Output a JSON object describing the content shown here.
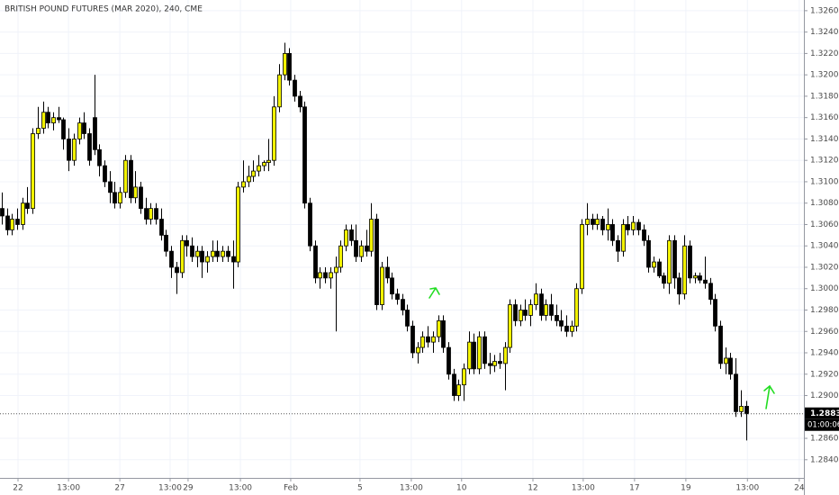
{
  "chart_data": {
    "type": "candlestick",
    "title": "BRITISH POUND FUTURES (MAR 2020), 240, CME",
    "up_color": "#f2f200",
    "down_color": "#000000",
    "grid": true,
    "ylim": [
      1.2823,
      1.327
    ],
    "yticks": [
      {
        "value": 1.326,
        "label": "1.3260"
      },
      {
        "value": 1.324,
        "label": "1.3240"
      },
      {
        "value": 1.322,
        "label": "1.3220"
      },
      {
        "value": 1.32,
        "label": "1.3200"
      },
      {
        "value": 1.318,
        "label": "1.3180"
      },
      {
        "value": 1.316,
        "label": "1.3160"
      },
      {
        "value": 1.314,
        "label": "1.3140"
      },
      {
        "value": 1.312,
        "label": "1.3120"
      },
      {
        "value": 1.31,
        "label": "1.3100"
      },
      {
        "value": 1.308,
        "label": "1.3080"
      },
      {
        "value": 1.306,
        "label": "1.3060"
      },
      {
        "value": 1.304,
        "label": "1.3040"
      },
      {
        "value": 1.302,
        "label": "1.3020"
      },
      {
        "value": 1.3,
        "label": "1.3000"
      },
      {
        "value": 1.298,
        "label": "1.2980"
      },
      {
        "value": 1.296,
        "label": "1.2960"
      },
      {
        "value": 1.294,
        "label": "1.2940"
      },
      {
        "value": 1.292,
        "label": "1.2920"
      },
      {
        "value": 1.29,
        "label": "1.2900"
      },
      {
        "value": 1.286,
        "label": "1.2860"
      },
      {
        "value": 1.284,
        "label": "1.2840"
      }
    ],
    "xlim": [
      -0.35,
      156.3
    ],
    "xticks": [
      {
        "value": 3.16,
        "label": "22"
      },
      {
        "value": 13.0,
        "label": "13:00"
      },
      {
        "value": 23.0,
        "label": "27"
      },
      {
        "value": 32.8,
        "label": "13:00"
      },
      {
        "value": 36.3,
        "label": "29"
      },
      {
        "value": 46.5,
        "label": "13:00"
      },
      {
        "value": 56.3,
        "label": "Feb"
      },
      {
        "value": 69.8,
        "label": "5"
      },
      {
        "value": 79.8,
        "label": "13:00"
      },
      {
        "value": 89.6,
        "label": "10"
      },
      {
        "value": 103.5,
        "label": "12"
      },
      {
        "value": 113.3,
        "label": "13:00"
      },
      {
        "value": 123.3,
        "label": "17"
      },
      {
        "value": 133.3,
        "label": "19"
      },
      {
        "value": 145.3,
        "label": "13:00"
      },
      {
        "value": 155.4,
        "label": "24"
      }
    ],
    "last_price": {
      "value": 1.2883,
      "label": "1.2883"
    },
    "countdown": "01:00:06",
    "ohlc": [
      [
        1.3075,
        1.309,
        1.306,
        1.3068
      ],
      [
        1.3068,
        1.3075,
        1.305,
        1.3055
      ],
      [
        1.3055,
        1.307,
        1.305,
        1.3065
      ],
      [
        1.3065,
        1.3075,
        1.3055,
        1.306
      ],
      [
        1.306,
        1.3085,
        1.3055,
        1.308
      ],
      [
        1.308,
        1.3095,
        1.307,
        1.3075
      ],
      [
        1.3075,
        1.315,
        1.307,
        1.3145
      ],
      [
        1.3145,
        1.317,
        1.314,
        1.315
      ],
      [
        1.315,
        1.3175,
        1.3145,
        1.3165
      ],
      [
        1.3165,
        1.317,
        1.315,
        1.3155
      ],
      [
        1.3155,
        1.3165,
        1.3148,
        1.316
      ],
      [
        1.316,
        1.317,
        1.3155,
        1.3158
      ],
      [
        1.3158,
        1.316,
        1.313,
        1.314
      ],
      [
        1.314,
        1.315,
        1.311,
        1.312
      ],
      [
        1.312,
        1.3145,
        1.3115,
        1.314
      ],
      [
        1.314,
        1.316,
        1.3135,
        1.3155
      ],
      [
        1.3155,
        1.3165,
        1.314,
        1.3145
      ],
      [
        1.3145,
        1.315,
        1.3115,
        1.312
      ],
      [
        1.316,
        1.32,
        1.3125,
        1.313
      ],
      [
        1.313,
        1.3135,
        1.3105,
        1.3115
      ],
      [
        1.3115,
        1.312,
        1.3095,
        1.31
      ],
      [
        1.31,
        1.311,
        1.308,
        1.309
      ],
      [
        1.309,
        1.31,
        1.3075,
        1.308
      ],
      [
        1.308,
        1.3095,
        1.3075,
        1.309
      ],
      [
        1.309,
        1.3125,
        1.3085,
        1.312
      ],
      [
        1.312,
        1.3125,
        1.308,
        1.3085
      ],
      [
        1.3085,
        1.311,
        1.308,
        1.3095
      ],
      [
        1.3095,
        1.31,
        1.307,
        1.3075
      ],
      [
        1.3075,
        1.3085,
        1.306,
        1.3065
      ],
      [
        1.3065,
        1.308,
        1.306,
        1.3075
      ],
      [
        1.3075,
        1.308,
        1.306,
        1.3065
      ],
      [
        1.3065,
        1.3075,
        1.3045,
        1.305
      ],
      [
        1.305,
        1.3055,
        1.303,
        1.3035
      ],
      [
        1.3035,
        1.304,
        1.301,
        1.302
      ],
      [
        1.302,
        1.3025,
        1.2995,
        1.3015
      ],
      [
        1.3015,
        1.305,
        1.301,
        1.3045
      ],
      [
        1.3045,
        1.305,
        1.303,
        1.304
      ],
      [
        1.304,
        1.3048,
        1.3025,
        1.303
      ],
      [
        1.303,
        1.304,
        1.302,
        1.3035
      ],
      [
        1.3035,
        1.304,
        1.301,
        1.3025
      ],
      [
        1.3025,
        1.3035,
        1.3015,
        1.303
      ],
      [
        1.303,
        1.3045,
        1.3025,
        1.3035
      ],
      [
        1.3035,
        1.3045,
        1.3025,
        1.303
      ],
      [
        1.303,
        1.304,
        1.3025,
        1.3035
      ],
      [
        1.3035,
        1.304,
        1.3025,
        1.303
      ],
      [
        1.303,
        1.3045,
        1.3,
        1.3025
      ],
      [
        1.3025,
        1.31,
        1.302,
        1.3095
      ],
      [
        1.3095,
        1.312,
        1.309,
        1.31
      ],
      [
        1.31,
        1.3115,
        1.3095,
        1.3105
      ],
      [
        1.3105,
        1.312,
        1.31,
        1.311
      ],
      [
        1.311,
        1.3125,
        1.3105,
        1.3115
      ],
      [
        1.3115,
        1.312,
        1.311,
        1.3118
      ],
      [
        1.3118,
        1.314,
        1.311,
        1.312
      ],
      [
        1.312,
        1.318,
        1.3115,
        1.317
      ],
      [
        1.317,
        1.321,
        1.3165,
        1.32
      ],
      [
        1.32,
        1.323,
        1.3195,
        1.322
      ],
      [
        1.322,
        1.3225,
        1.319,
        1.3195
      ],
      [
        1.3195,
        1.32,
        1.3175,
        1.318
      ],
      [
        1.318,
        1.3185,
        1.3165,
        1.317
      ],
      [
        1.317,
        1.3175,
        1.3075,
        1.308
      ],
      [
        1.308,
        1.3085,
        1.3035,
        1.304
      ],
      [
        1.304,
        1.3045,
        1.3005,
        1.301
      ],
      [
        1.301,
        1.302,
        1.3,
        1.3015
      ],
      [
        1.3015,
        1.302,
        1.3005,
        1.301
      ],
      [
        1.301,
        1.302,
        1.3,
        1.3015
      ],
      [
        1.3015,
        1.303,
        1.296,
        1.302
      ],
      [
        1.302,
        1.3045,
        1.3015,
        1.304
      ],
      [
        1.304,
        1.306,
        1.3035,
        1.3055
      ],
      [
        1.3055,
        1.306,
        1.304,
        1.3045
      ],
      [
        1.3045,
        1.306,
        1.3025,
        1.303
      ],
      [
        1.303,
        1.3045,
        1.3025,
        1.304
      ],
      [
        1.304,
        1.3055,
        1.303,
        1.3035
      ],
      [
        1.3035,
        1.308,
        1.303,
        1.3065
      ],
      [
        1.3065,
        1.307,
        1.298,
        1.2985
      ],
      [
        1.2985,
        1.3025,
        1.298,
        1.302
      ],
      [
        1.302,
        1.303,
        1.3005,
        1.301
      ],
      [
        1.301,
        1.3015,
        1.299,
        1.2995
      ],
      [
        1.2995,
        1.3,
        1.2985,
        1.299
      ],
      [
        1.299,
        1.2995,
        1.2975,
        1.298
      ],
      [
        1.298,
        1.2985,
        1.296,
        1.2965
      ],
      [
        1.2965,
        1.297,
        1.2935,
        1.294
      ],
      [
        1.294,
        1.295,
        1.293,
        1.2945
      ],
      [
        1.2945,
        1.296,
        1.294,
        1.2955
      ],
      [
        1.2955,
        1.2965,
        1.2945,
        1.295
      ],
      [
        1.295,
        1.296,
        1.294,
        1.2955
      ],
      [
        1.2955,
        1.2975,
        1.295,
        1.297
      ],
      [
        1.297,
        1.2975,
        1.294,
        1.2945
      ],
      [
        1.2945,
        1.295,
        1.2915,
        1.292
      ],
      [
        1.292,
        1.2925,
        1.2895,
        1.29
      ],
      [
        1.29,
        1.2915,
        1.2895,
        1.291
      ],
      [
        1.291,
        1.293,
        1.2895,
        1.2925
      ],
      [
        1.2925,
        1.296,
        1.292,
        1.295
      ],
      [
        1.295,
        1.2958,
        1.292,
        1.2925
      ],
      [
        1.2925,
        1.296,
        1.292,
        1.2955
      ],
      [
        1.2955,
        1.296,
        1.2925,
        1.293
      ],
      [
        1.293,
        1.294,
        1.292,
        1.2928
      ],
      [
        1.2928,
        1.2938,
        1.2922,
        1.2932
      ],
      [
        1.2932,
        1.294,
        1.2925,
        1.293
      ],
      [
        1.293,
        1.295,
        1.2905,
        1.2945
      ],
      [
        1.2945,
        1.299,
        1.294,
        1.2985
      ],
      [
        1.2985,
        1.299,
        1.2965,
        1.297
      ],
      [
        1.297,
        1.2985,
        1.2965,
        1.298
      ],
      [
        1.298,
        1.299,
        1.297,
        1.2975
      ],
      [
        1.2975,
        1.299,
        1.2965,
        1.2985
      ],
      [
        1.2985,
        1.3005,
        1.298,
        1.2995
      ],
      [
        1.2995,
        1.3,
        1.297,
        1.2975
      ],
      [
        1.2975,
        1.299,
        1.297,
        1.2985
      ],
      [
        1.2985,
        1.2995,
        1.297,
        1.2975
      ],
      [
        1.2975,
        1.2985,
        1.2965,
        1.297
      ],
      [
        1.297,
        1.298,
        1.296,
        1.2965
      ],
      [
        1.2965,
        1.2975,
        1.2955,
        1.296
      ],
      [
        1.296,
        1.297,
        1.2955,
        1.2965
      ],
      [
        1.2965,
        1.3005,
        1.296,
        1.3
      ],
      [
        1.3,
        1.3065,
        1.2995,
        1.306
      ],
      [
        1.306,
        1.308,
        1.305,
        1.3065
      ],
      [
        1.3065,
        1.307,
        1.3055,
        1.306
      ],
      [
        1.306,
        1.307,
        1.3055,
        1.3065
      ],
      [
        1.3065,
        1.3068,
        1.305,
        1.3055
      ],
      [
        1.3055,
        1.3075,
        1.3045,
        1.306
      ],
      [
        1.306,
        1.3065,
        1.304,
        1.3045
      ],
      [
        1.3045,
        1.305,
        1.3025,
        1.3035
      ],
      [
        1.3035,
        1.3065,
        1.303,
        1.306
      ],
      [
        1.306,
        1.3068,
        1.305,
        1.3055
      ],
      [
        1.3055,
        1.3068,
        1.305,
        1.3062
      ],
      [
        1.3062,
        1.3065,
        1.305,
        1.3055
      ],
      [
        1.3055,
        1.306,
        1.304,
        1.3045
      ],
      [
        1.3045,
        1.305,
        1.3015,
        1.302
      ],
      [
        1.302,
        1.303,
        1.3015,
        1.3025
      ],
      [
        1.3025,
        1.3028,
        1.301,
        1.3012
      ],
      [
        1.3012,
        1.3015,
        1.3,
        1.3005
      ],
      [
        1.3005,
        1.305,
        1.2995,
        1.3045
      ],
      [
        1.3045,
        1.305,
        1.3,
        1.301
      ],
      [
        1.301,
        1.3015,
        1.2985,
        1.2995
      ],
      [
        1.2995,
        1.305,
        1.299,
        1.304
      ],
      [
        1.304,
        1.3045,
        1.3005,
        1.301
      ],
      [
        1.301,
        1.3015,
        1.3005,
        1.3012
      ],
      [
        1.3012,
        1.3015,
        1.3005,
        1.3008
      ],
      [
        1.3008,
        1.303,
        1.3,
        1.3005
      ],
      [
        1.3005,
        1.301,
        1.2985,
        1.299
      ],
      [
        1.299,
        1.2995,
        1.296,
        1.2965
      ],
      [
        1.2965,
        1.297,
        1.2925,
        1.293
      ],
      [
        1.293,
        1.2945,
        1.292,
        1.2935
      ],
      [
        1.2935,
        1.294,
        1.2915,
        1.292
      ],
      [
        1.292,
        1.2935,
        1.288,
        1.2885
      ],
      [
        1.2885,
        1.2905,
        1.288,
        1.289
      ],
      [
        1.289,
        1.2895,
        1.2858,
        1.2883
      ]
    ]
  }
}
